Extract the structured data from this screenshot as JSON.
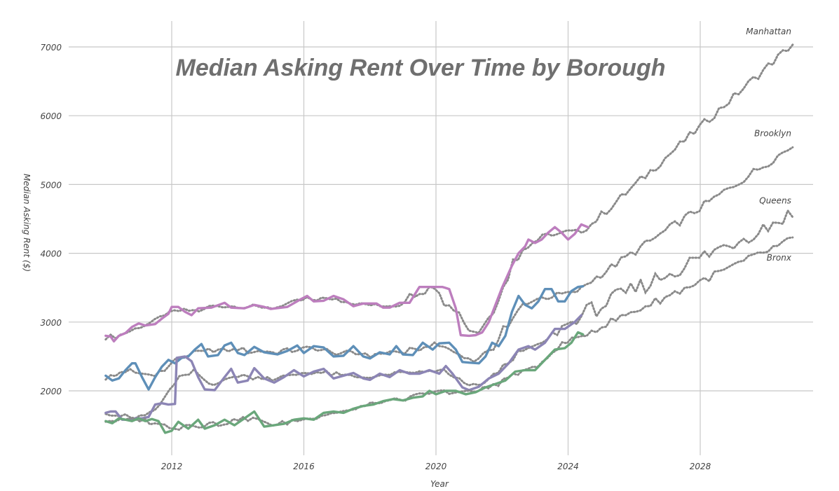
{
  "chart_data": {
    "type": "line",
    "title": "Median Asking Rent Over Time by Borough",
    "xlabel": "Year",
    "ylabel": "Median Asking Rent ($)",
    "xlim": [
      2010,
      2031.5
    ],
    "ylim": [
      1100,
      7350
    ],
    "x_ticks": [
      "2012",
      "2016",
      "2020",
      "2024",
      "2028"
    ],
    "x_tick_values": [
      2012,
      2016,
      2020,
      2024,
      2028
    ],
    "y_ticks": [
      "2000",
      "3000",
      "4000",
      "5000",
      "6000",
      "7000"
    ],
    "y_tick_values": [
      2000,
      3000,
      4000,
      5000,
      6000,
      7000
    ],
    "grid": true,
    "legend": "none",
    "forecast_style": "dotted gray",
    "series": [
      {
        "name": "Manhattan",
        "color": "#bd7ebe",
        "actual": [
          [
            2010.0,
            2800
          ],
          [
            2010.15,
            2790
          ],
          [
            2010.25,
            2720
          ],
          [
            2010.4,
            2800
          ],
          [
            2010.6,
            2840
          ],
          [
            2010.8,
            2930
          ],
          [
            2011.0,
            2980
          ],
          [
            2011.2,
            2950
          ],
          [
            2011.5,
            2970
          ],
          [
            2011.7,
            3050
          ],
          [
            2011.9,
            3120
          ],
          [
            2012.0,
            3220
          ],
          [
            2012.2,
            3220
          ],
          [
            2012.4,
            3150
          ],
          [
            2012.6,
            3100
          ],
          [
            2012.8,
            3200
          ],
          [
            2013.2,
            3210
          ],
          [
            2013.6,
            3280
          ],
          [
            2013.8,
            3210
          ],
          [
            2014.2,
            3200
          ],
          [
            2014.5,
            3250
          ],
          [
            2014.8,
            3220
          ],
          [
            2015.0,
            3190
          ],
          [
            2015.5,
            3220
          ],
          [
            2015.9,
            3330
          ],
          [
            2016.1,
            3380
          ],
          [
            2016.3,
            3300
          ],
          [
            2016.6,
            3310
          ],
          [
            2016.9,
            3380
          ],
          [
            2017.2,
            3330
          ],
          [
            2017.5,
            3230
          ],
          [
            2017.8,
            3270
          ],
          [
            2018.2,
            3270
          ],
          [
            2018.4,
            3210
          ],
          [
            2018.6,
            3210
          ],
          [
            2018.9,
            3280
          ],
          [
            2019.2,
            3280
          ],
          [
            2019.5,
            3510
          ],
          [
            2019.7,
            3510
          ],
          [
            2020.2,
            3510
          ],
          [
            2020.4,
            3480
          ],
          [
            2020.6,
            3200
          ],
          [
            2020.75,
            2810
          ],
          [
            2021.0,
            2800
          ],
          [
            2021.2,
            2810
          ],
          [
            2021.4,
            2850
          ],
          [
            2021.6,
            3000
          ],
          [
            2021.8,
            3250
          ],
          [
            2022.0,
            3500
          ],
          [
            2022.3,
            3820
          ],
          [
            2022.5,
            4000
          ],
          [
            2022.7,
            4100
          ],
          [
            2022.8,
            4200
          ],
          [
            2023.0,
            4150
          ],
          [
            2023.2,
            4200
          ],
          [
            2023.4,
            4300
          ],
          [
            2023.6,
            4380
          ],
          [
            2023.8,
            4300
          ],
          [
            2024.0,
            4200
          ],
          [
            2024.2,
            4280
          ],
          [
            2024.4,
            4420
          ],
          [
            2024.6,
            4380
          ]
        ],
        "forecast_label": "Manhattan",
        "forecast_end": [
          2030.8,
          7040
        ]
      },
      {
        "name": "Brooklyn",
        "color": "#5e8fb8",
        "actual": [
          [
            2010.0,
            2220
          ],
          [
            2010.2,
            2150
          ],
          [
            2010.4,
            2180
          ],
          [
            2010.6,
            2300
          ],
          [
            2010.8,
            2400
          ],
          [
            2010.9,
            2400
          ],
          [
            2011.1,
            2200
          ],
          [
            2011.3,
            2020
          ],
          [
            2011.5,
            2200
          ],
          [
            2011.7,
            2350
          ],
          [
            2011.9,
            2450
          ],
          [
            2012.1,
            2400
          ],
          [
            2012.3,
            2480
          ],
          [
            2012.5,
            2500
          ],
          [
            2012.7,
            2600
          ],
          [
            2012.9,
            2680
          ],
          [
            2013.1,
            2500
          ],
          [
            2013.4,
            2520
          ],
          [
            2013.6,
            2660
          ],
          [
            2013.8,
            2700
          ],
          [
            2014.0,
            2550
          ],
          [
            2014.2,
            2520
          ],
          [
            2014.5,
            2640
          ],
          [
            2014.8,
            2560
          ],
          [
            2015.2,
            2530
          ],
          [
            2015.5,
            2580
          ],
          [
            2015.8,
            2660
          ],
          [
            2016.0,
            2550
          ],
          [
            2016.3,
            2650
          ],
          [
            2016.6,
            2630
          ],
          [
            2016.9,
            2500
          ],
          [
            2017.2,
            2510
          ],
          [
            2017.5,
            2650
          ],
          [
            2017.8,
            2500
          ],
          [
            2018.0,
            2470
          ],
          [
            2018.3,
            2560
          ],
          [
            2018.6,
            2530
          ],
          [
            2018.8,
            2650
          ],
          [
            2019.0,
            2530
          ],
          [
            2019.3,
            2520
          ],
          [
            2019.6,
            2700
          ],
          [
            2019.9,
            2600
          ],
          [
            2020.1,
            2690
          ],
          [
            2020.4,
            2700
          ],
          [
            2020.6,
            2600
          ],
          [
            2020.8,
            2420
          ],
          [
            2021.0,
            2410
          ],
          [
            2021.3,
            2400
          ],
          [
            2021.5,
            2500
          ],
          [
            2021.7,
            2700
          ],
          [
            2021.9,
            2650
          ],
          [
            2022.1,
            2800
          ],
          [
            2022.3,
            3150
          ],
          [
            2022.5,
            3380
          ],
          [
            2022.7,
            3250
          ],
          [
            2022.9,
            3200
          ],
          [
            2023.1,
            3300
          ],
          [
            2023.3,
            3480
          ],
          [
            2023.5,
            3480
          ],
          [
            2023.7,
            3300
          ],
          [
            2023.9,
            3300
          ],
          [
            2024.1,
            3450
          ],
          [
            2024.3,
            3510
          ],
          [
            2024.45,
            3520
          ]
        ],
        "forecast_label": "Brooklyn",
        "forecast_end": [
          2030.8,
          5560
        ]
      },
      {
        "name": "Queens",
        "color": "#8c85b5",
        "actual": [
          [
            2010.0,
            1680
          ],
          [
            2010.15,
            1700
          ],
          [
            2010.3,
            1700
          ],
          [
            2010.5,
            1580
          ],
          [
            2010.7,
            1580
          ],
          [
            2010.9,
            1600
          ],
          [
            2011.1,
            1600
          ],
          [
            2011.3,
            1620
          ],
          [
            2011.5,
            1800
          ],
          [
            2011.7,
            1820
          ],
          [
            2011.9,
            1800
          ],
          [
            2012.1,
            1810
          ],
          [
            2012.15,
            2480
          ],
          [
            2012.4,
            2500
          ],
          [
            2012.6,
            2430
          ],
          [
            2012.8,
            2200
          ],
          [
            2013.0,
            2020
          ],
          [
            2013.3,
            2010
          ],
          [
            2013.6,
            2200
          ],
          [
            2013.8,
            2320
          ],
          [
            2014.0,
            2120
          ],
          [
            2014.3,
            2150
          ],
          [
            2014.5,
            2330
          ],
          [
            2014.8,
            2180
          ],
          [
            2015.1,
            2120
          ],
          [
            2015.4,
            2200
          ],
          [
            2015.7,
            2300
          ],
          [
            2016.0,
            2210
          ],
          [
            2016.3,
            2280
          ],
          [
            2016.6,
            2320
          ],
          [
            2016.9,
            2180
          ],
          [
            2017.2,
            2220
          ],
          [
            2017.5,
            2260
          ],
          [
            2017.8,
            2180
          ],
          [
            2018.0,
            2160
          ],
          [
            2018.3,
            2250
          ],
          [
            2018.6,
            2200
          ],
          [
            2018.9,
            2300
          ],
          [
            2019.2,
            2250
          ],
          [
            2019.5,
            2250
          ],
          [
            2019.8,
            2300
          ],
          [
            2020.1,
            2250
          ],
          [
            2020.3,
            2360
          ],
          [
            2020.5,
            2250
          ],
          [
            2020.8,
            2050
          ],
          [
            2021.0,
            2010
          ],
          [
            2021.3,
            2060
          ],
          [
            2021.6,
            2180
          ],
          [
            2021.9,
            2250
          ],
          [
            2022.2,
            2400
          ],
          [
            2022.5,
            2600
          ],
          [
            2022.8,
            2650
          ],
          [
            2023.0,
            2600
          ],
          [
            2023.3,
            2700
          ],
          [
            2023.6,
            2900
          ],
          [
            2023.9,
            2900
          ],
          [
            2024.2,
            3000
          ],
          [
            2024.4,
            3100
          ]
        ],
        "forecast_label": "Queens",
        "forecast_end": [
          2030.8,
          4580
        ]
      },
      {
        "name": "Bronx",
        "color": "#6aa77b",
        "actual": [
          [
            2010.0,
            1560
          ],
          [
            2010.2,
            1530
          ],
          [
            2010.4,
            1600
          ],
          [
            2010.6,
            1580
          ],
          [
            2010.8,
            1560
          ],
          [
            2011.0,
            1600
          ],
          [
            2011.2,
            1560
          ],
          [
            2011.4,
            1590
          ],
          [
            2011.6,
            1560
          ],
          [
            2011.8,
            1390
          ],
          [
            2012.0,
            1420
          ],
          [
            2012.2,
            1550
          ],
          [
            2012.5,
            1450
          ],
          [
            2012.8,
            1580
          ],
          [
            2013.0,
            1450
          ],
          [
            2013.3,
            1500
          ],
          [
            2013.6,
            1580
          ],
          [
            2013.9,
            1500
          ],
          [
            2014.2,
            1600
          ],
          [
            2014.5,
            1700
          ],
          [
            2014.8,
            1480
          ],
          [
            2015.1,
            1500
          ],
          [
            2015.4,
            1520
          ],
          [
            2015.7,
            1580
          ],
          [
            2016.0,
            1600
          ],
          [
            2016.3,
            1580
          ],
          [
            2016.6,
            1680
          ],
          [
            2016.9,
            1700
          ],
          [
            2017.2,
            1680
          ],
          [
            2017.5,
            1740
          ],
          [
            2017.8,
            1780
          ],
          [
            2018.1,
            1800
          ],
          [
            2018.4,
            1850
          ],
          [
            2018.7,
            1880
          ],
          [
            2019.0,
            1860
          ],
          [
            2019.3,
            1900
          ],
          [
            2019.6,
            1920
          ],
          [
            2019.8,
            2000
          ],
          [
            2020.0,
            1950
          ],
          [
            2020.3,
            2000
          ],
          [
            2020.6,
            2000
          ],
          [
            2020.9,
            1950
          ],
          [
            2021.2,
            1980
          ],
          [
            2021.5,
            2050
          ],
          [
            2021.8,
            2100
          ],
          [
            2022.1,
            2150
          ],
          [
            2022.4,
            2280
          ],
          [
            2022.7,
            2300
          ],
          [
            2023.0,
            2300
          ],
          [
            2023.3,
            2450
          ],
          [
            2023.6,
            2600
          ],
          [
            2023.9,
            2620
          ],
          [
            2024.1,
            2700
          ],
          [
            2024.3,
            2850
          ],
          [
            2024.45,
            2820
          ]
        ],
        "forecast_label": "Bronx",
        "forecast_end": [
          2030.8,
          4200
        ]
      }
    ]
  }
}
